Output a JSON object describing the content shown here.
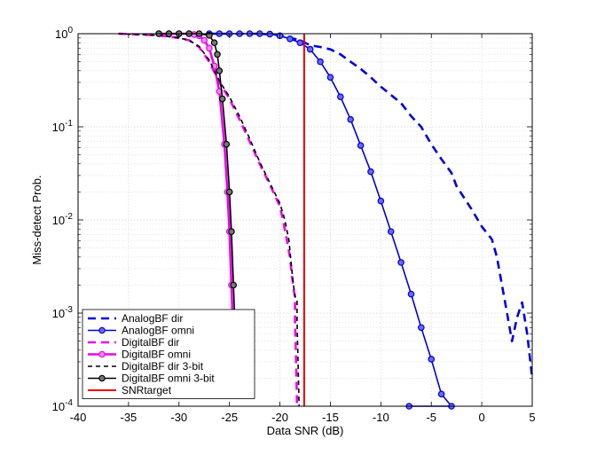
{
  "chart_data": {
    "type": "line",
    "title": "",
    "xlabel": "Data SNR (dB)",
    "ylabel": "Miss-detect Prob.",
    "xlim": [
      -40,
      5
    ],
    "ylim": [
      0.0001,
      1
    ],
    "yscale": "log",
    "grid": true,
    "legend_position": "bottom-left",
    "x_ticks": [
      -40,
      -35,
      -30,
      -25,
      -20,
      -15,
      -10,
      -5,
      0,
      5
    ],
    "x_tick_labels": [
      "-40",
      "-35",
      "-30",
      "-25",
      "-20",
      "-15",
      "-10",
      "-5",
      "0",
      "5"
    ],
    "y_ticks": [
      0.0001,
      0.001,
      0.01,
      0.1,
      1
    ],
    "y_tick_labels": [
      {
        "base": "10",
        "exp": "-4"
      },
      {
        "base": "10",
        "exp": "-3"
      },
      {
        "base": "10",
        "exp": "-2"
      },
      {
        "base": "10",
        "exp": "-1"
      },
      {
        "base": "10",
        "exp": "0"
      }
    ],
    "series": [
      {
        "name": "AnalogBF dir",
        "color": "#0000dd",
        "dash": "dashed",
        "width": 2.6,
        "marker": "none",
        "points": [
          [
            -27,
            1
          ],
          [
            -22,
            1
          ],
          [
            -20,
            0.96
          ],
          [
            -18,
            0.85
          ],
          [
            -17,
            0.75
          ],
          [
            -16,
            0.72
          ],
          [
            -15,
            0.68
          ],
          [
            -14,
            0.6
          ],
          [
            -13,
            0.5
          ],
          [
            -12,
            0.42
          ],
          [
            -11,
            0.34
          ],
          [
            -10,
            0.27
          ],
          [
            -9,
            0.22
          ],
          [
            -8,
            0.18
          ],
          [
            -7,
            0.13
          ],
          [
            -6,
            0.1
          ],
          [
            -5,
            0.065
          ],
          [
            -4,
            0.045
          ],
          [
            -3,
            0.032
          ],
          [
            -2.5,
            0.023
          ],
          [
            -2,
            0.019
          ],
          [
            -1,
            0.013
          ],
          [
            0,
            0.0085
          ],
          [
            1,
            0.0062
          ],
          [
            1.5,
            0.004
          ],
          [
            2,
            0.002
          ],
          [
            2.5,
            0.001
          ],
          [
            3,
            0.0005
          ],
          [
            3.5,
            0.0009
          ],
          [
            4,
            0.0013
          ],
          [
            4.5,
            0.0006
          ],
          [
            5,
            0.0002
          ]
        ]
      },
      {
        "name": "AnalogBF omni",
        "color": "#0000dd",
        "dash": "solid",
        "width": 1.6,
        "marker": "circle",
        "points": [
          [
            -27,
            1
          ],
          [
            -26,
            1
          ],
          [
            -25,
            1
          ],
          [
            -24,
            1
          ],
          [
            -23,
            1
          ],
          [
            -22,
            1
          ],
          [
            -21,
            0.99
          ],
          [
            -20,
            0.95
          ],
          [
            -19,
            0.88
          ],
          [
            -18,
            0.8
          ],
          [
            -17,
            0.68
          ],
          [
            -16,
            0.5
          ],
          [
            -15,
            0.34
          ],
          [
            -14,
            0.21
          ],
          [
            -13,
            0.12
          ],
          [
            -12,
            0.063
          ],
          [
            -11,
            0.033
          ],
          [
            -10,
            0.016
          ],
          [
            -9,
            0.0075
          ],
          [
            -8,
            0.0035
          ],
          [
            -7,
            0.0016
          ],
          [
            -6,
            0.0007
          ],
          [
            -5,
            0.00032
          ],
          [
            -4,
            0.000135
          ],
          [
            -3,
            0.0001
          ],
          [
            -7.2,
            0.0001
          ]
        ]
      },
      {
        "name": "DigitalBF dir",
        "color": "#ee00ee",
        "dash": "dashed",
        "width": 2.6,
        "marker": "none",
        "points": [
          [
            -36,
            1
          ],
          [
            -34,
            0.98
          ],
          [
            -32,
            0.96
          ],
          [
            -30,
            0.9
          ],
          [
            -29,
            0.85
          ],
          [
            -28,
            0.72
          ],
          [
            -27,
            0.5
          ],
          [
            -26,
            0.3
          ],
          [
            -25,
            0.2
          ],
          [
            -24,
            0.12
          ],
          [
            -23,
            0.07
          ],
          [
            -22,
            0.04
          ],
          [
            -21,
            0.024
          ],
          [
            -20,
            0.014
          ],
          [
            -19.7,
            0.01
          ],
          [
            -19.3,
            0.006
          ],
          [
            -19,
            0.004
          ],
          [
            -18.8,
            0.0025
          ],
          [
            -18.6,
            0.0017
          ],
          [
            -18.5,
            0.0015
          ],
          [
            -18.5,
            0.0008
          ],
          [
            -18.4,
            0.0003
          ],
          [
            -18.3,
            0.0001
          ]
        ]
      },
      {
        "name": "DigitalBF omni",
        "color": "#ee00ee",
        "dash": "solid",
        "width": 2.6,
        "marker": "circle",
        "points": [
          [
            -32,
            1
          ],
          [
            -31,
            1
          ],
          [
            -30,
            1
          ],
          [
            -29,
            1
          ],
          [
            -28.5,
            0.98
          ],
          [
            -28,
            0.95
          ],
          [
            -27.5,
            0.85
          ],
          [
            -27,
            0.7
          ],
          [
            -26.5,
            0.45
          ],
          [
            -26,
            0.24
          ],
          [
            -25.5,
            0.065
          ],
          [
            -25.2,
            0.02
          ],
          [
            -25,
            0.0075
          ],
          [
            -24.8,
            0.002
          ],
          [
            -24.6,
            0.0005
          ],
          [
            -24.5,
            0.0002
          ]
        ]
      },
      {
        "name": "DigitalBF dir 3-bit",
        "color": "#000000",
        "dash": "dashed",
        "width": 1.6,
        "marker": "none",
        "points": [
          [
            -36,
            1
          ],
          [
            -34,
            0.98
          ],
          [
            -32,
            0.96
          ],
          [
            -30,
            0.9
          ],
          [
            -29,
            0.85
          ],
          [
            -28,
            0.73
          ],
          [
            -27,
            0.52
          ],
          [
            -26,
            0.31
          ],
          [
            -25,
            0.21
          ],
          [
            -24,
            0.13
          ],
          [
            -23,
            0.075
          ],
          [
            -22,
            0.042
          ],
          [
            -21,
            0.025
          ],
          [
            -20,
            0.015
          ],
          [
            -19.5,
            0.01
          ],
          [
            -19.1,
            0.006
          ],
          [
            -18.9,
            0.0035
          ],
          [
            -18.7,
            0.0022
          ],
          [
            -18.5,
            0.0015
          ],
          [
            -18.3,
            0.0014
          ],
          [
            -18.3,
            0.0008
          ],
          [
            -18.2,
            0.0003
          ],
          [
            -18.1,
            0.0001
          ]
        ]
      },
      {
        "name": "DigitalBF omni 3-bit",
        "color": "#000000",
        "dash": "solid",
        "width": 1.6,
        "marker": "circle",
        "points": [
          [
            -32,
            1
          ],
          [
            -31,
            1
          ],
          [
            -30,
            1
          ],
          [
            -29,
            1
          ],
          [
            -28,
            1
          ],
          [
            -27,
            0.96
          ],
          [
            -26.5,
            0.8
          ],
          [
            -26.2,
            0.6
          ],
          [
            -26,
            0.4
          ],
          [
            -25.7,
            0.2
          ],
          [
            -25.3,
            0.065
          ],
          [
            -25,
            0.02
          ],
          [
            -24.8,
            0.0075
          ],
          [
            -24.6,
            0.002
          ],
          [
            -24.4,
            0.0005
          ],
          [
            -24.3,
            0.0002
          ]
        ]
      },
      {
        "name": "SNRtarget",
        "color": "#ee0000",
        "dash": "solid",
        "width": 2,
        "marker": "none",
        "points": [
          [
            -17.6,
            0.0001
          ],
          [
            -17.6,
            1
          ]
        ]
      }
    ]
  }
}
